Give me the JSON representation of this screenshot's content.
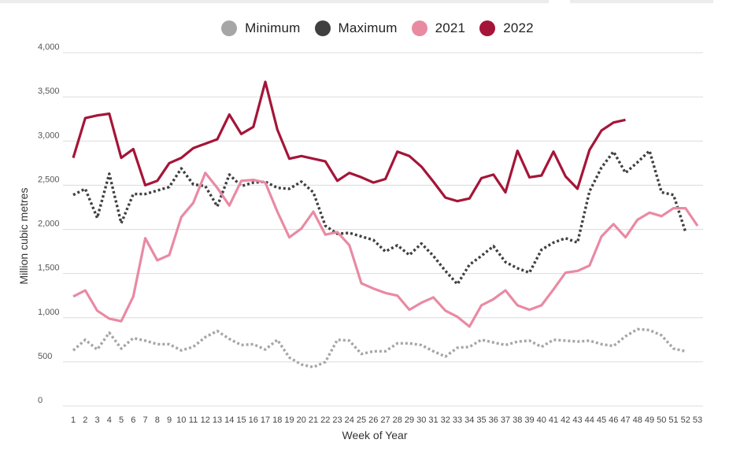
{
  "chart_data": {
    "type": "line",
    "xlabel": "Week of Year",
    "ylabel": "Million cubic metres",
    "ylim": [
      0,
      4000
    ],
    "yticks": [
      0,
      500,
      1000,
      1500,
      2000,
      2500,
      3000,
      3500,
      4000
    ],
    "ytick_labels": [
      "0",
      "500",
      "1,000",
      "1,500",
      "2,000",
      "2,500",
      "3,000",
      "3,500",
      "4,000"
    ],
    "x": [
      1,
      2,
      3,
      4,
      5,
      6,
      7,
      8,
      9,
      10,
      11,
      12,
      13,
      14,
      15,
      16,
      17,
      18,
      19,
      20,
      21,
      22,
      23,
      24,
      25,
      26,
      27,
      28,
      29,
      30,
      31,
      32,
      33,
      34,
      35,
      36,
      37,
      38,
      39,
      40,
      41,
      42,
      43,
      44,
      45,
      46,
      47,
      48,
      49,
      50,
      51,
      52,
      53
    ],
    "grid": true,
    "legend_position": "top-center",
    "series": [
      {
        "name": "Minimum",
        "color": "#a6a6a6",
        "style": "dotted",
        "values": [
          630,
          750,
          640,
          830,
          650,
          770,
          740,
          700,
          700,
          630,
          670,
          780,
          850,
          760,
          690,
          700,
          640,
          750,
          550,
          470,
          440,
          500,
          750,
          740,
          590,
          620,
          620,
          710,
          710,
          690,
          620,
          560,
          660,
          670,
          750,
          720,
          690,
          730,
          740,
          670,
          750,
          740,
          730,
          740,
          700,
          680,
          790,
          870,
          860,
          800,
          650,
          620,
          null
        ]
      },
      {
        "name": "Maximum",
        "color": "#404040",
        "style": "dotted",
        "values": [
          2390,
          2460,
          2130,
          2630,
          2070,
          2400,
          2400,
          2440,
          2480,
          2690,
          2510,
          2490,
          2260,
          2620,
          2490,
          2530,
          2540,
          2470,
          2460,
          2540,
          2420,
          2040,
          1950,
          1960,
          1920,
          1880,
          1750,
          1820,
          1710,
          1840,
          1700,
          1530,
          1380,
          1600,
          1700,
          1810,
          1630,
          1560,
          1510,
          1770,
          1850,
          1900,
          1850,
          2430,
          2700,
          2880,
          2640,
          2760,
          2890,
          2420,
          2390,
          1970,
          null
        ]
      },
      {
        "name": "2021",
        "color": "#e98aa3",
        "style": "solid",
        "values": [
          1240,
          1310,
          1080,
          990,
          960,
          1240,
          1900,
          1650,
          1710,
          2140,
          2300,
          2640,
          2470,
          2270,
          2550,
          2560,
          2530,
          2200,
          1910,
          2010,
          2200,
          1940,
          1970,
          1820,
          1390,
          1330,
          1280,
          1250,
          1090,
          1170,
          1230,
          1080,
          1010,
          900,
          1140,
          1210,
          1310,
          1140,
          1090,
          1140,
          1320,
          1510,
          1530,
          1590,
          1920,
          2060,
          1910,
          2110,
          2190,
          2150,
          2240,
          2240,
          2040
        ]
      },
      {
        "name": "2022",
        "color": "#a51538",
        "style": "solid",
        "values": [
          2810,
          3260,
          3290,
          3310,
          2810,
          2910,
          2500,
          2550,
          2750,
          2810,
          2920,
          2970,
          3020,
          3300,
          3080,
          3160,
          3670,
          3130,
          2800,
          2830,
          2800,
          2770,
          2550,
          2640,
          2590,
          2530,
          2570,
          2880,
          2830,
          2710,
          2540,
          2360,
          2320,
          2350,
          2580,
          2620,
          2420,
          2890,
          2590,
          2610,
          2880,
          2600,
          2460,
          2900,
          3120,
          3210,
          3240,
          null,
          null,
          null,
          null,
          null,
          null
        ]
      }
    ]
  }
}
